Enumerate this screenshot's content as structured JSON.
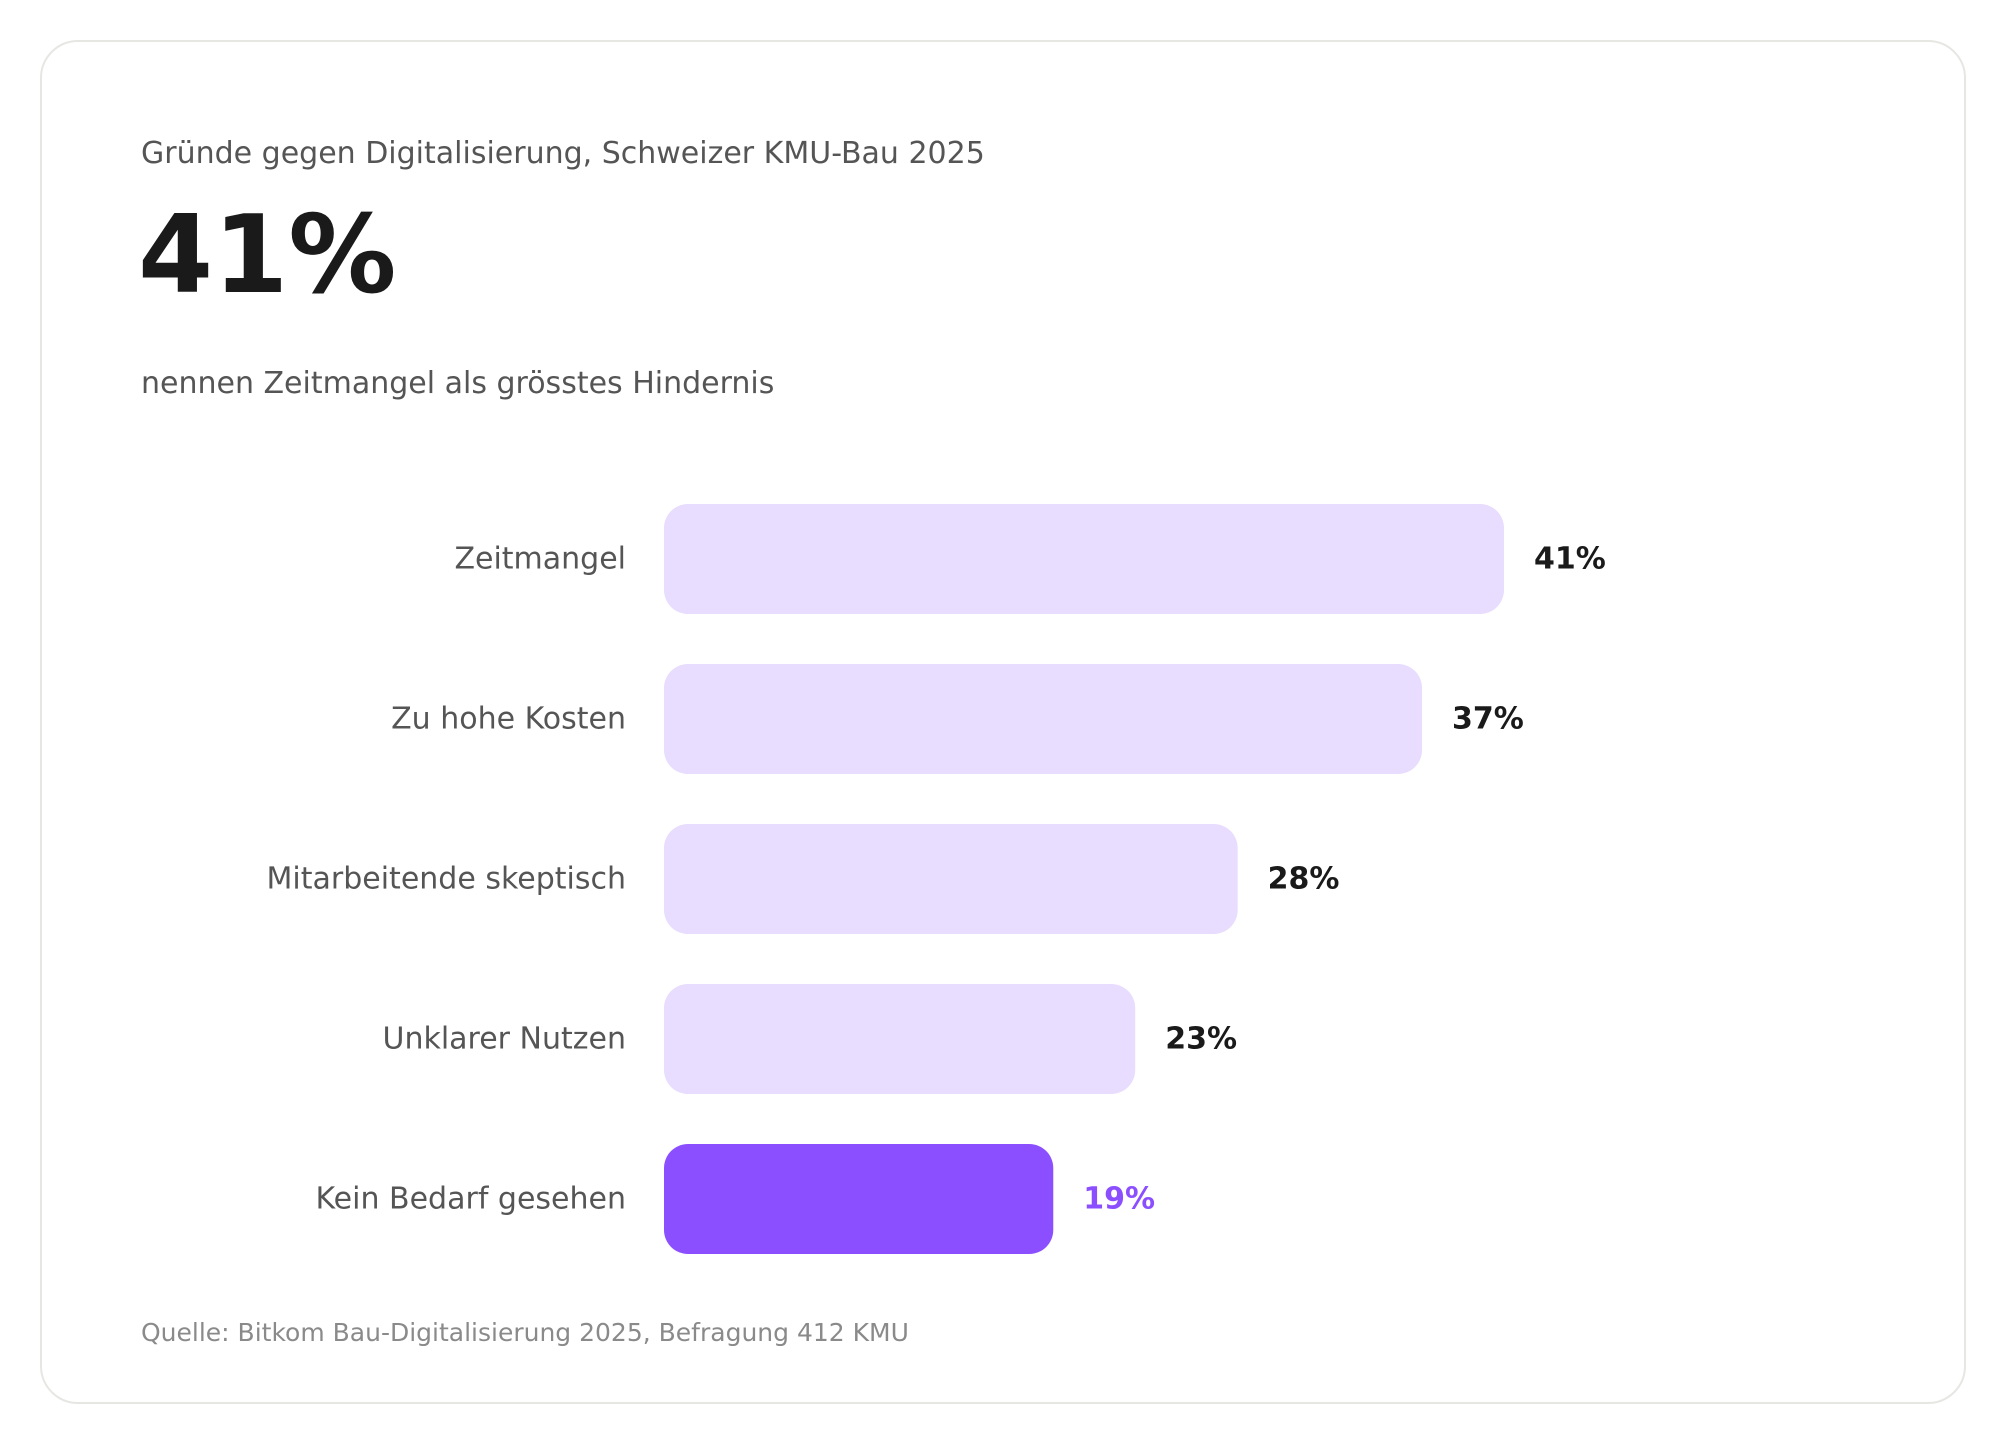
{
  "header": {
    "subtitle": "Gründe gegen Digitalisierung, Schweizer KMU-Bau 2025",
    "hero_value": "41%",
    "hero_caption": "nennen Zeitmangel als grösstes Hindernis"
  },
  "footer": {
    "source": "Quelle: Bitkom Bau-Digitalisierung 2025, Befragung 412 KMU"
  },
  "colors": {
    "bar_default": "#e8dcff",
    "bar_highlight": "#8c4fff",
    "value_default": "#1a1a1a",
    "value_highlight": "#8c4fff"
  },
  "chart_data": {
    "type": "bar",
    "orientation": "horizontal",
    "title": "Gründe gegen Digitalisierung, Schweizer KMU-Bau 2025",
    "xlabel": "",
    "ylabel": "",
    "unit": "%",
    "grid": false,
    "categories": [
      "Zeitmangel",
      "Zu hohe Kosten",
      "Mitarbeitende skeptisch",
      "Unklarer Nutzen",
      "Kein Bedarf gesehen"
    ],
    "values": [
      41,
      37,
      28,
      23,
      19
    ],
    "value_labels": [
      "41%",
      "37%",
      "28%",
      "23%",
      "19%"
    ],
    "highlight_index": 4,
    "xlim": [
      0,
      41
    ]
  }
}
